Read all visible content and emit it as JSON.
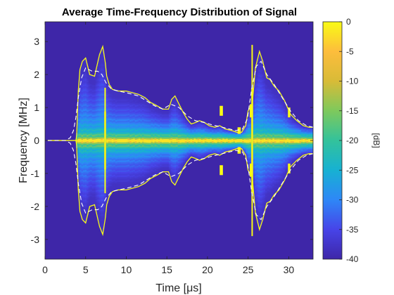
{
  "chart_data": {
    "type": "heatmap",
    "title": "Average Time-Frequency Distribution of Signal",
    "xlabel": "Time [μs]",
    "ylabel": "Frequency [MHz]",
    "xlim": [
      0,
      33
    ],
    "ylim": [
      -3.6,
      3.6
    ],
    "xticks": [
      0,
      5,
      10,
      15,
      20,
      25,
      30
    ],
    "yticks": [
      -3,
      -2,
      -1,
      0,
      1,
      2,
      3
    ],
    "colorbar": {
      "label": "[dB]",
      "range": [
        -40,
        0
      ],
      "ticks": [
        0,
        -5,
        -10,
        -15,
        -20,
        -25,
        -30,
        -35,
        -40
      ],
      "colormap": "parula",
      "colors": [
        "#3e26a8",
        "#4744e8",
        "#2e87f7",
        "#17b1d2",
        "#33c29b",
        "#7ec95c",
        "#d8bb37",
        "#fdbd3c",
        "#f9fb15"
      ]
    },
    "background_color": "#3e26a8",
    "series": [
      {
        "style": "solid yellow",
        "color": "#f9fb15",
        "x": [
          0.3,
          3.8,
          3.9,
          4.0,
          4.1,
          4.3,
          4.6,
          5.0,
          5.5,
          6.1,
          6.7,
          7.1,
          7.4,
          7.6,
          7.9,
          8.3,
          9.0,
          10.0,
          11.5,
          12.3,
          13.0,
          13.8,
          14.5,
          15.2,
          15.6,
          16.0,
          16.5,
          17.0,
          17.5,
          18.0,
          18.6,
          19.0,
          19.6,
          20.2,
          20.9,
          21.5,
          22.2,
          23.0,
          23.6,
          24.2,
          24.7,
          25.0,
          25.5,
          25.9,
          26.4,
          26.8,
          27.3,
          27.7,
          28.2,
          28.8,
          29.5,
          30.2,
          31.0,
          31.8,
          32.5,
          33.0
        ],
        "y": [
          0,
          0,
          0.15,
          0.9,
          1.5,
          2.15,
          2.4,
          2.5,
          2.0,
          1.95,
          2.6,
          2.85,
          2.4,
          1.95,
          1.7,
          1.55,
          1.5,
          1.5,
          1.4,
          1.3,
          1.15,
          1.05,
          0.95,
          0.95,
          1.25,
          1.35,
          1.1,
          0.85,
          0.65,
          0.5,
          0.55,
          0.6,
          0.55,
          0.45,
          0.4,
          0.45,
          0.35,
          0.3,
          0.25,
          0.25,
          0.45,
          0.9,
          1.1,
          2.2,
          2.7,
          2.4,
          1.9,
          1.85,
          1.65,
          1.5,
          1.2,
          0.8,
          0.6,
          0.45,
          0.4,
          0.4
        ]
      },
      {
        "style": "dashed white",
        "color": "#ffffff",
        "x": [
          0.3,
          1.5,
          2.5,
          3.1,
          3.5,
          3.8,
          4.1,
          4.5,
          5.0,
          5.8,
          6.5,
          7.0,
          7.5,
          8.2,
          9.0,
          10.0,
          11.5,
          12.5,
          13.5,
          14.5,
          15.5,
          16.5,
          17.5,
          18.5,
          19.5,
          20.5,
          21.5,
          22.5,
          23.5,
          24.3,
          24.9,
          25.4,
          26.0,
          26.6,
          27.3,
          28.2,
          29.2,
          30.2,
          31.2,
          32.2,
          33.0
        ],
        "y": [
          0,
          0,
          0,
          0.08,
          0.3,
          0.7,
          1.3,
          1.9,
          2.2,
          2.1,
          2.1,
          2.0,
          1.75,
          1.55,
          1.5,
          1.45,
          1.35,
          1.2,
          1.05,
          0.95,
          1.1,
          1.0,
          0.75,
          0.6,
          0.55,
          0.48,
          0.42,
          0.36,
          0.3,
          0.35,
          0.65,
          1.5,
          2.25,
          2.4,
          2.0,
          1.7,
          1.3,
          0.9,
          0.6,
          0.45,
          0.4
        ]
      }
    ],
    "spikes": [
      {
        "t": 7.4,
        "half_width": 1.6
      },
      {
        "t": 25.5,
        "half_width": 2.9
      }
    ],
    "bright_blocks": [
      {
        "t0": 21.5,
        "t1": 21.9,
        "f0": 0.75,
        "f1": 1.05
      },
      {
        "t0": 23.7,
        "t1": 24.1,
        "f0": 0.2,
        "f1": 0.4
      },
      {
        "t0": 25.2,
        "t1": 25.5,
        "f0": 0.7,
        "f1": 1.1
      },
      {
        "t0": 21.5,
        "t1": 21.9,
        "f0": -1.05,
        "f1": -0.75
      },
      {
        "t0": 23.7,
        "t1": 24.1,
        "f0": -0.4,
        "f1": -0.2
      },
      {
        "t0": 25.2,
        "t1": 25.5,
        "f0": -1.1,
        "f1": -0.7
      },
      {
        "t0": 29.9,
        "t1": 30.2,
        "f0": 0.7,
        "f1": 1.0
      },
      {
        "t0": 29.9,
        "t1": 30.2,
        "f0": -1.0,
        "f1": -0.7
      }
    ]
  }
}
